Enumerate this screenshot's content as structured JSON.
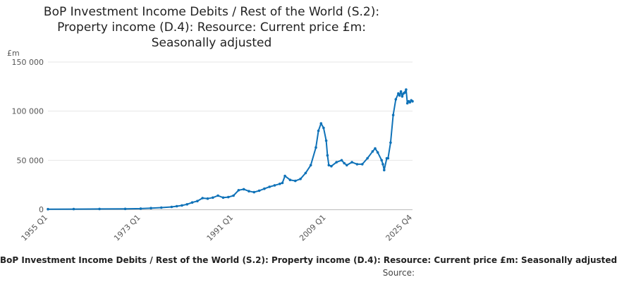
{
  "title_lines": [
    "BoP Investment Income Debits / Rest of the World (S.2):",
    "Property income (D.4): Resource: Current price £m:",
    "Seasonally adjusted"
  ],
  "footer": {
    "series_label": "BoP Investment Income Debits / Rest of the World (S.2): Property income (D.4): Resource: Current price £m: Seasonally adjusted",
    "source_label": "Source:"
  },
  "colors": {
    "line": "#0F72B8",
    "grid": "#e6e6e6",
    "axis": "#bbbbbb"
  },
  "chart_data": {
    "type": "line",
    "title": "BoP Investment Income Debits / Rest of the World (S.2): Property income (D.4): Resource: Current price £m: Seasonally adjusted",
    "unit_label": "£m",
    "ylim": [
      0,
      150000
    ],
    "y_ticks": [
      0,
      50000,
      100000,
      150000
    ],
    "y_tick_labels": [
      "0",
      "50 000",
      "100 000",
      "150 000"
    ],
    "x_ticks": [
      "1955 Q1",
      "1973 Q1",
      "1991 Q1",
      "2009 Q1",
      "2025 Q4"
    ],
    "grid": true,
    "legend": "none",
    "x": [
      "1955 Q1",
      "1960 Q1",
      "1965 Q1",
      "1970 Q1",
      "1973 Q1",
      "1975 Q1",
      "1977 Q1",
      "1979 Q1",
      "1980 Q1",
      "1981 Q1",
      "1982 Q1",
      "1983 Q1",
      "1984 Q1",
      "1985 Q1",
      "1986 Q1",
      "1987 Q1",
      "1988 Q1",
      "1989 Q1",
      "1990 Q1",
      "1991 Q1",
      "1992 Q1",
      "1993 Q1",
      "1994 Q1",
      "1995 Q1",
      "1996 Q1",
      "1997 Q1",
      "1998 Q1",
      "1999 Q1",
      "2000 Q1",
      "2000 Q3",
      "2001 Q1",
      "2002 Q1",
      "2003 Q1",
      "2004 Q1",
      "2005 Q1",
      "2006 Q1",
      "2007 Q1",
      "2007 Q3",
      "2008 Q1",
      "2008 Q3",
      "2009 Q1",
      "2009 Q2",
      "2009 Q3",
      "2010 Q1",
      "2011 Q1",
      "2012 Q1",
      "2012 Q3",
      "2013 Q1",
      "2014 Q1",
      "2015 Q1",
      "2016 Q1",
      "2017 Q1",
      "2018 Q1",
      "2018 Q3",
      "2019 Q1",
      "2019 Q4",
      "2020 Q1",
      "2020 Q2",
      "2020 Q4",
      "2021 Q1",
      "2021 Q3",
      "2022 Q1",
      "2022 Q3",
      "2023 Q1",
      "2023 Q2",
      "2023 Q3",
      "2023 Q4",
      "2024 Q1",
      "2024 Q2",
      "2024 Q3",
      "2024 Q4",
      "2025 Q1",
      "2025 Q2",
      "2025 Q3",
      "2025 Q4"
    ],
    "series": [
      {
        "values": [
          200,
          300,
          400,
          500,
          800,
          1300,
          1800,
          2500,
          3200,
          4000,
          5200,
          7000,
          8500,
          11500,
          11000,
          12000,
          14000,
          12000,
          12500,
          14000,
          19500,
          20500,
          18500,
          17500,
          19000,
          21000,
          23000,
          24500,
          26000,
          27000,
          34000,
          30000,
          29000,
          31000,
          37000,
          45000,
          63000,
          80000,
          87500,
          83000,
          70000,
          55000,
          45000,
          44000,
          48000,
          50000,
          47000,
          45000,
          48000,
          46000,
          46000,
          52000,
          59000,
          62000,
          58000,
          50000,
          46000,
          40000,
          52000,
          52000,
          68000,
          96000,
          112000,
          118000,
          116000,
          120000,
          115000,
          118000,
          119000,
          122000,
          108000,
          110000,
          109000,
          111000,
          110000
        ]
      }
    ]
  }
}
